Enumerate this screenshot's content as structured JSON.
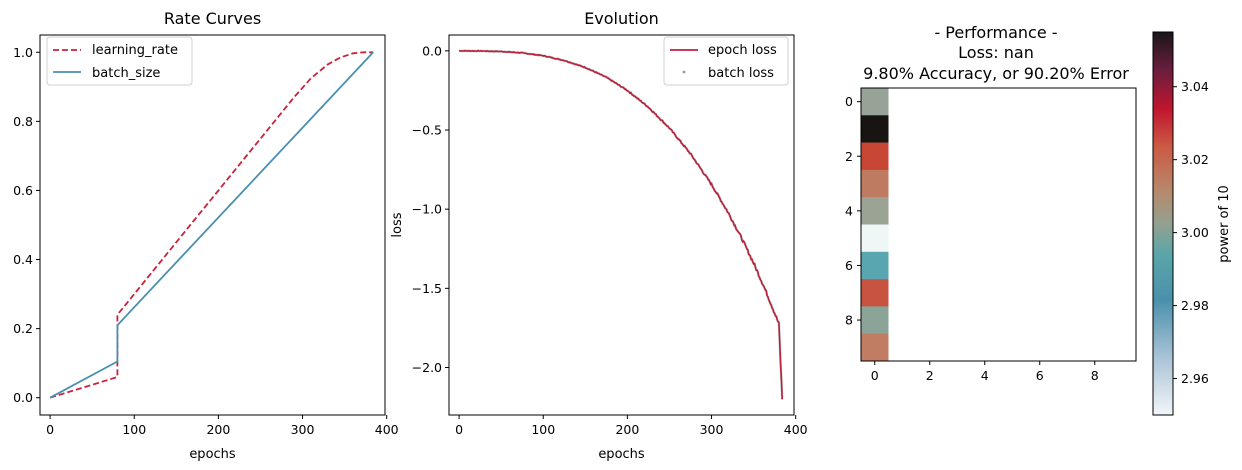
{
  "chart_data": [
    {
      "type": "line",
      "title": "Rate Curves",
      "xlabel": "epochs",
      "ylabel": "",
      "xlim": [
        -12,
        398
      ],
      "ylim": [
        -0.05,
        1.05
      ],
      "xticks": [
        0,
        100,
        200,
        300,
        400
      ],
      "yticks": [
        0.0,
        0.2,
        0.4,
        0.6,
        0.8,
        1.0
      ],
      "x_tick_labels": [
        "0",
        "100",
        "200",
        "300",
        "400"
      ],
      "y_tick_labels": [
        "0.0",
        "0.2",
        "0.4",
        "0.6",
        "0.8",
        "1.0"
      ],
      "legend_position": "top-left",
      "series": [
        {
          "name": "learning_rate",
          "color": "#c8233c",
          "style": "dashed",
          "x": [
            0,
            80,
            80,
            110,
            140,
            170,
            200,
            230,
            260,
            290,
            310,
            330,
            345,
            360,
            372,
            384
          ],
          "y": [
            0.0,
            0.06,
            0.24,
            0.33,
            0.42,
            0.51,
            0.6,
            0.69,
            0.78,
            0.87,
            0.925,
            0.965,
            0.985,
            0.997,
            1.0,
            1.0
          ]
        },
        {
          "name": "batch_size",
          "color": "#4a8fb0",
          "style": "solid",
          "x": [
            0,
            80,
            80,
            384
          ],
          "y": [
            0.0,
            0.105,
            0.21,
            1.0
          ]
        }
      ]
    },
    {
      "type": "line",
      "title": "Evolution",
      "xlabel": "epochs",
      "ylabel": "loss",
      "xlim": [
        -12,
        398
      ],
      "ylim": [
        -2.3,
        0.1
      ],
      "xticks": [
        0,
        100,
        200,
        300,
        400
      ],
      "yticks": [
        -2.0,
        -1.5,
        -1.0,
        -0.5,
        0.0
      ],
      "x_tick_labels": [
        "0",
        "100",
        "200",
        "300",
        "400"
      ],
      "y_tick_labels": [
        "−2.0",
        "−1.5",
        "−1.0",
        "−0.5",
        "0.0"
      ],
      "legend_position": "top-right",
      "series": [
        {
          "name": "epoch loss",
          "color": "#b8233c",
          "style": "solid",
          "x": [
            0,
            25,
            50,
            75,
            100,
            125,
            150,
            175,
            200,
            225,
            250,
            275,
            300,
            320,
            335,
            350,
            362,
            372,
            380,
            384
          ],
          "y": [
            0.0,
            -0.001,
            -0.004,
            -0.013,
            -0.031,
            -0.061,
            -0.105,
            -0.167,
            -0.25,
            -0.356,
            -0.488,
            -0.65,
            -0.844,
            -1.024,
            -1.175,
            -1.341,
            -1.485,
            -1.615,
            -1.725,
            -2.2
          ]
        },
        {
          "name": "batch loss",
          "color": "#9a9a9a",
          "style": "points",
          "x": [],
          "y": []
        }
      ]
    },
    {
      "type": "heatmap",
      "title_lines": [
        "- Performance -",
        "Loss: nan",
        "9.80% Accuracy, or 90.20% Error"
      ],
      "xticks": [
        0,
        2,
        4,
        6,
        8
      ],
      "yticks": [
        0,
        2,
        4,
        6,
        8
      ],
      "x_tick_labels": [
        "0",
        "2",
        "4",
        "6",
        "8"
      ],
      "y_tick_labels": [
        "0",
        "2",
        "4",
        "6",
        "8"
      ],
      "column": 0,
      "values": [
        2.992,
        3.055,
        3.015,
        3.004,
        2.993,
        2.953,
        2.977,
        3.015,
        2.988,
        3.005
      ],
      "cell_colors": [
        "#96a396",
        "#181411",
        "#c84634",
        "#bf7a62",
        "#9aa394",
        "#eef6f6",
        "#5aa6b0",
        "#c95341",
        "#8aa598",
        "#c07d64"
      ],
      "colorbar": {
        "label": "power of 10",
        "range": [
          2.95,
          3.055
        ],
        "ticks": [
          2.96,
          2.98,
          3.0,
          3.02,
          3.04
        ],
        "tick_labels": [
          "2.96",
          "2.98",
          "3.00",
          "3.02",
          "3.04"
        ]
      }
    }
  ]
}
